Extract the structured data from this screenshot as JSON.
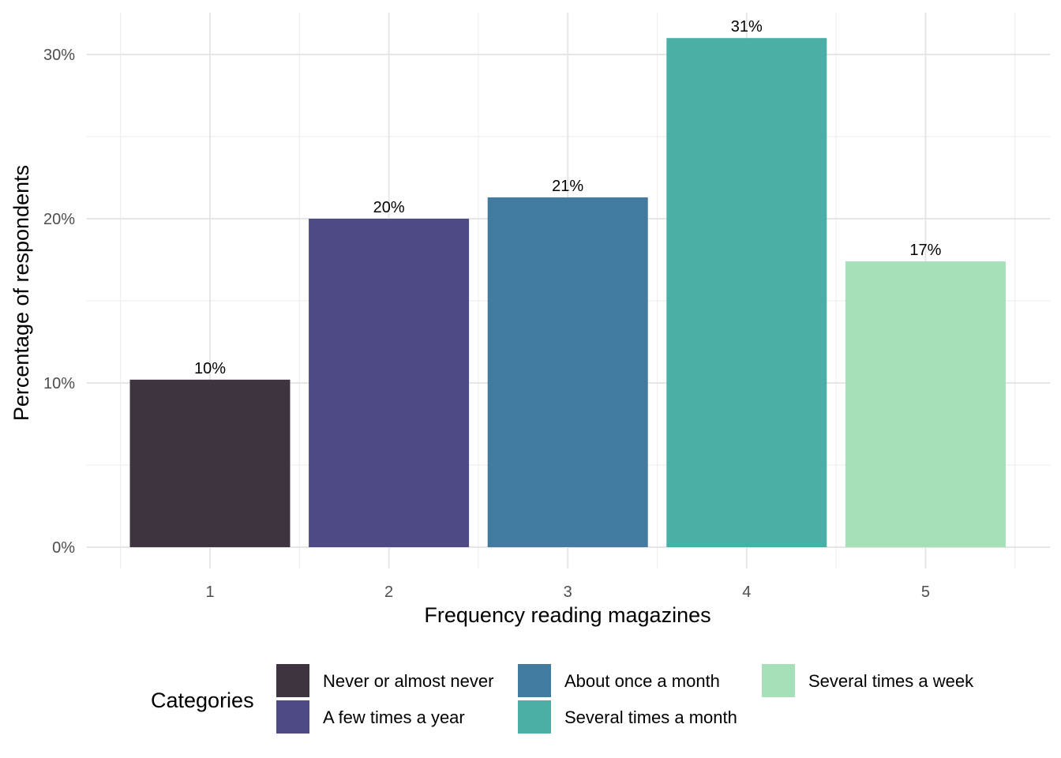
{
  "chart_data": {
    "type": "bar",
    "categories": [
      "1",
      "2",
      "3",
      "4",
      "5"
    ],
    "values": [
      10.2,
      20.0,
      21.3,
      31.0,
      17.4
    ],
    "data_labels": [
      "10%",
      "20%",
      "21%",
      "31%",
      "17%"
    ],
    "colors": [
      "#3e3440",
      "#4e4a85",
      "#437aa0",
      "#4aafa6",
      "#a6e0b9"
    ],
    "xlabel": "Frequency reading magazines",
    "ylabel": "Percentage of respondents",
    "ylim": [
      0,
      32
    ],
    "yticks": [
      0,
      10,
      20,
      30
    ],
    "ytick_labels": [
      "0%",
      "10%",
      "20%",
      "30%"
    ],
    "grid": true,
    "legend": {
      "title": "Categories",
      "position": "bottom",
      "entries": [
        "Never or almost never",
        "A few times a year",
        "About once a month",
        "Several times a month",
        "Several times a week"
      ]
    }
  }
}
